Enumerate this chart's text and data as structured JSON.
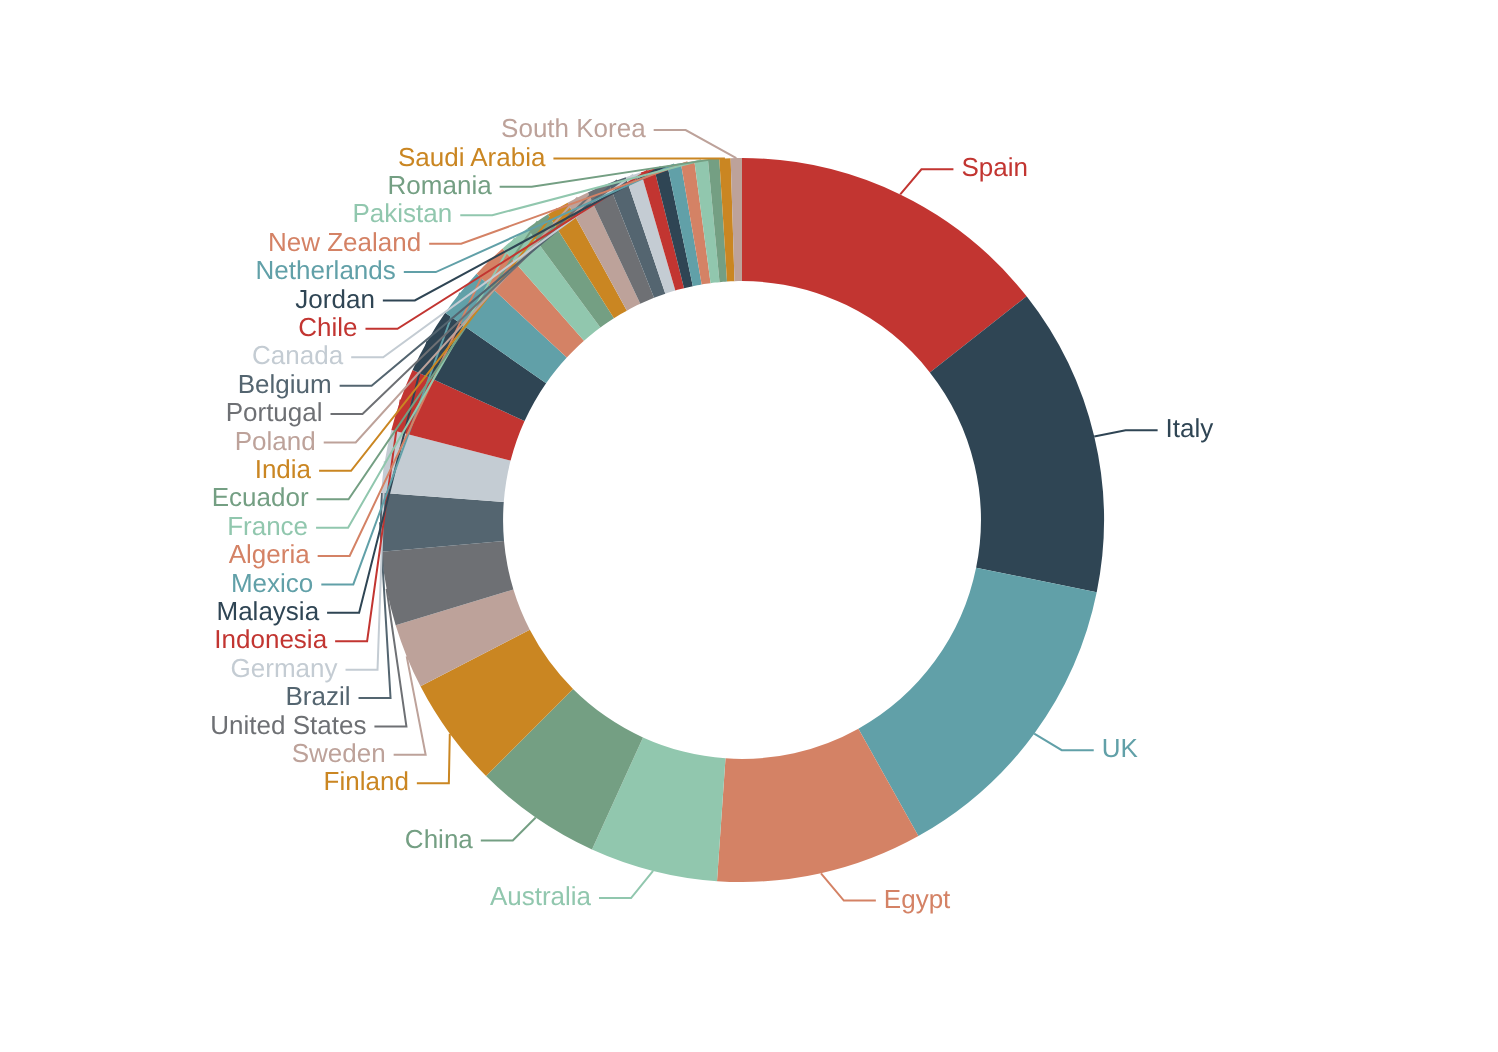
{
  "chart_data": {
    "type": "donut",
    "categories": [
      "Spain",
      "Italy",
      "UK",
      "Egypt",
      "Australia",
      "China",
      "Finland",
      "Sweden",
      "United States",
      "Brazil",
      "Germany",
      "Indonesia",
      "Malaysia",
      "Mexico",
      "Algeria",
      "France",
      "Ecuador",
      "India",
      "Poland",
      "Portugal",
      "Belgium",
      "Canada",
      "Chile",
      "Jordan",
      "Netherlands",
      "New Zealand",
      "Pakistan",
      "Romania",
      "Saudi Arabia",
      "South Korea"
    ],
    "values": [
      14.4,
      13.8,
      13.7,
      9.2,
      5.7,
      5.7,
      4.9,
      2.9,
      3.3,
      2.6,
      2.8,
      2.8,
      2.9,
      2.2,
      1.6,
      1.4,
      1.1,
      1.0,
      1.0,
      1.0,
      0.8,
      0.7,
      0.6,
      0.6,
      0.6,
      0.6,
      0.6,
      0.5,
      0.5,
      0.5
    ],
    "colors": [
      "#c23531",
      "#2f4554",
      "#61a0a8",
      "#d48265",
      "#91c7ae",
      "#749f83",
      "#ca8622",
      "#bda29a",
      "#6e7074",
      "#546570",
      "#c4ccd3",
      "#c23531",
      "#2f4554",
      "#61a0a8",
      "#d48265",
      "#91c7ae",
      "#749f83",
      "#ca8622",
      "#bda29a",
      "#6e7074",
      "#546570",
      "#c4ccd3",
      "#c23531",
      "#2f4554",
      "#61a0a8",
      "#d48265",
      "#91c7ae",
      "#749f83",
      "#ca8622",
      "#bda29a"
    ]
  }
}
